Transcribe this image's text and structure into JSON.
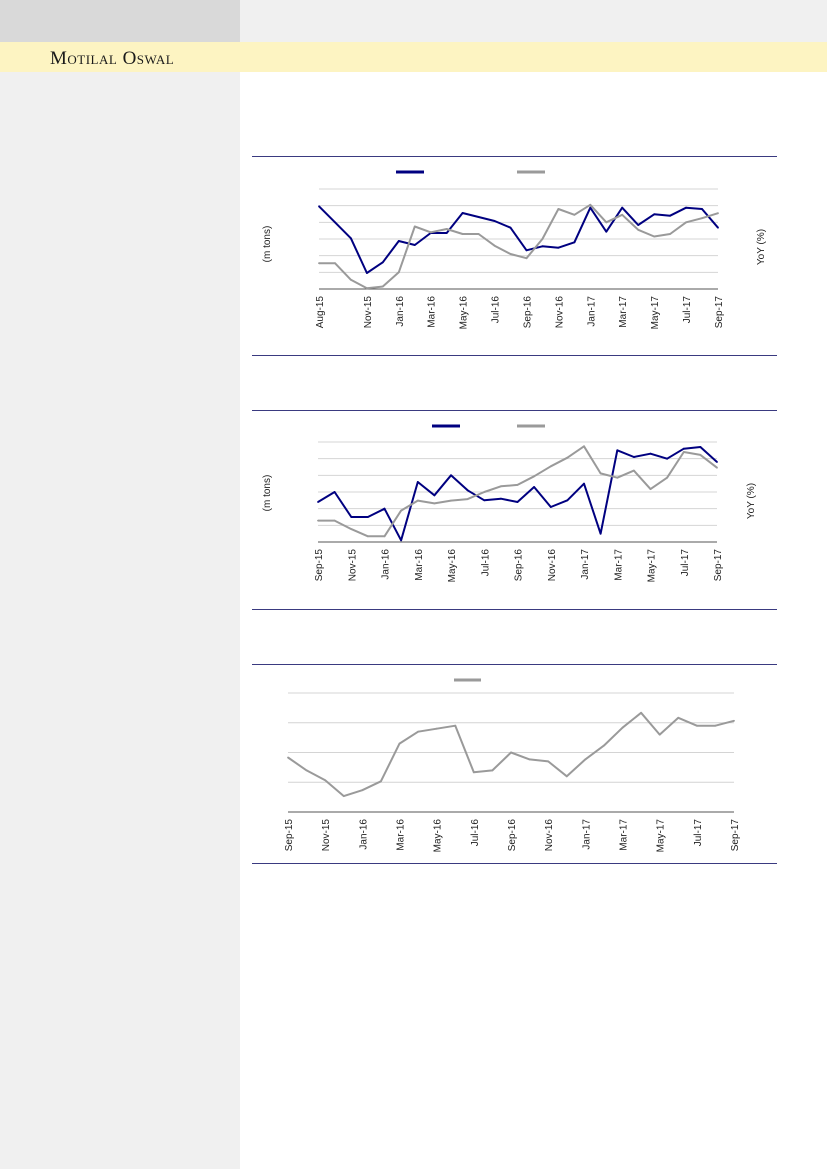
{
  "header": {
    "brand": "Motilal Oswal"
  },
  "chart_data": [
    {
      "type": "line",
      "x": [
        "Aug-15",
        "Sep-15",
        "Oct-15",
        "Nov-15",
        "Dec-15",
        "Jan-16",
        "Feb-16",
        "Mar-16",
        "Apr-16",
        "May-16",
        "Jun-16",
        "Jul-16",
        "Aug-16",
        "Sep-16",
        "Oct-16",
        "Nov-16",
        "Dec-16",
        "Jan-17",
        "Feb-17",
        "Mar-17",
        "Apr-17",
        "May-17",
        "Jun-17",
        "Jul-17",
        "Aug-17",
        "Sep-17"
      ],
      "tick_labels": [
        "Aug-15",
        "Nov-15",
        "Jan-16",
        "Mar-16",
        "May-16",
        "Jul-16",
        "Sep-16",
        "Nov-16",
        "Jan-17",
        "Mar-17",
        "May-17",
        "Jul-17",
        "Sep-17"
      ],
      "ylabel": "(m tons)",
      "y2label": "YoY (%)",
      "grid": true,
      "series": [
        {
          "color": "#000080",
          "axis": "left",
          "values": [
            62,
            50,
            38,
            12,
            20,
            36,
            33,
            42,
            42,
            57,
            54,
            51,
            46,
            29,
            32,
            31,
            35,
            61,
            43,
            61,
            48,
            56,
            55,
            61,
            60,
            46
          ]
        },
        {
          "color": "#9a9a9a",
          "axis": "right",
          "values": [
            31,
            31,
            11,
            1,
            3,
            20,
            75,
            68,
            72,
            66,
            66,
            52,
            42,
            37,
            60,
            96,
            89,
            101,
            80,
            89,
            71,
            63,
            66,
            80,
            85,
            91
          ]
        }
      ]
    },
    {
      "type": "line",
      "x": [
        "Sep-15",
        "Oct-15",
        "Nov-15",
        "Dec-15",
        "Jan-16",
        "Feb-16",
        "Mar-16",
        "Apr-16",
        "May-16",
        "Jun-16",
        "Jul-16",
        "Aug-16",
        "Sep-16",
        "Oct-16",
        "Nov-16",
        "Dec-16",
        "Jan-17",
        "Feb-17",
        "Mar-17",
        "Apr-17",
        "May-17",
        "Jun-17",
        "Jul-17",
        "Aug-17",
        "Sep-17"
      ],
      "tick_labels": [
        "Sep-15",
        "Nov-15",
        "Jan-16",
        "Mar-16",
        "May-16",
        "Jul-16",
        "Sep-16",
        "Nov-16",
        "Jan-17",
        "Mar-17",
        "May-17",
        "Jul-17",
        "Sep-17"
      ],
      "ylabel": "(m tons)",
      "y2label": "YoY (%)",
      "grid": true,
      "series": [
        {
          "color": "#000080",
          "axis": "left",
          "values": [
            18,
            24,
            9,
            9,
            14,
            -5,
            30,
            22,
            34,
            25,
            19,
            20,
            18,
            27,
            15,
            19,
            29,
            -1,
            49,
            45,
            47,
            44,
            50,
            51,
            42
          ]
        },
        {
          "color": "#9a9a9a",
          "axis": "right",
          "values": [
            15,
            15,
            9,
            4,
            4,
            22,
            29,
            27,
            29,
            30,
            35,
            39,
            40,
            46,
            53,
            59,
            67,
            48,
            45,
            50,
            37,
            45,
            63,
            61,
            52
          ]
        }
      ]
    },
    {
      "type": "line",
      "x": [
        "Sep-15",
        "Oct-15",
        "Nov-15",
        "Dec-15",
        "Jan-16",
        "Feb-16",
        "Mar-16",
        "Apr-16",
        "May-16",
        "Jun-16",
        "Jul-16",
        "Aug-16",
        "Sep-16",
        "Oct-16",
        "Nov-16",
        "Dec-16",
        "Jan-17",
        "Feb-17",
        "Mar-17",
        "Apr-17",
        "May-17",
        "Jun-17",
        "Jul-17",
        "Aug-17",
        "Sep-17"
      ],
      "tick_labels": [
        "Sep-15",
        "Nov-15",
        "Jan-16",
        "Mar-16",
        "May-16",
        "Jul-16",
        "Sep-16",
        "Nov-16",
        "Jan-17",
        "Mar-17",
        "May-17",
        "Jul-17",
        "Sep-17"
      ],
      "grid": true,
      "series": [
        {
          "color": "#9a9a9a",
          "axis": "left",
          "values": [
            35,
            22,
            12,
            -4,
            2,
            11,
            49,
            61,
            64,
            67,
            20,
            22,
            40,
            33,
            31,
            16,
            33,
            47,
            65,
            80,
            58,
            75,
            67,
            67,
            72
          ]
        }
      ]
    }
  ]
}
